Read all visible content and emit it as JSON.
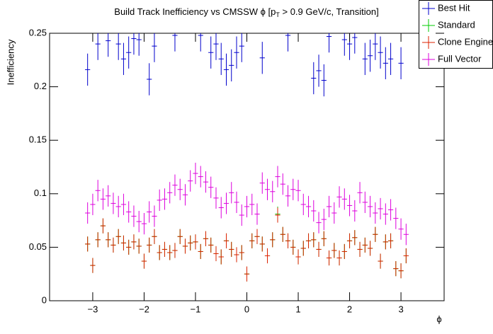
{
  "chart_data": {
    "type": "scatter",
    "title": "Build Track Inefficiency vs CMSSW ϕ [p",
    "title_sub": "T",
    "title_end": " > 0.9 GeV/c, Transition]",
    "xlabel": "ϕ",
    "ylabel": "Inefficiency",
    "xlim": [
      -3.84,
      3.84
    ],
    "ylim": [
      0,
      0.25
    ],
    "xticks": [
      {
        "value": -3,
        "label": "−3"
      },
      {
        "value": -2,
        "label": "−2"
      },
      {
        "value": -1,
        "label": "−1"
      },
      0,
      1,
      2,
      3
    ],
    "yticks": [
      0,
      0.05,
      0.1,
      0.15,
      0.2,
      0.25
    ],
    "legend": "top-right",
    "x": [
      -3.1,
      -3.0,
      -2.9,
      -2.8,
      -2.7,
      -2.6,
      -2.5,
      -2.4,
      -2.3,
      -2.2,
      -2.1,
      -2.0,
      -1.9,
      -1.8,
      -1.7,
      -1.6,
      -1.5,
      -1.4,
      -1.3,
      -1.2,
      -1.1,
      -1.0,
      -0.9,
      -0.8,
      -0.7,
      -0.6,
      -0.5,
      -0.4,
      -0.3,
      -0.2,
      -0.1,
      0.0,
      0.1,
      0.2,
      0.3,
      0.4,
      0.5,
      0.6,
      0.7,
      0.8,
      0.9,
      1.0,
      1.1,
      1.2,
      1.3,
      1.4,
      1.5,
      1.6,
      1.7,
      1.8,
      1.9,
      2.0,
      2.1,
      2.2,
      2.3,
      2.4,
      2.5,
      2.6,
      2.7,
      2.8,
      2.9,
      3.0,
      3.1
    ],
    "series": [
      {
        "name": "Best Hit",
        "color": "#0000cc",
        "error": 0.015,
        "values": [
          0.216,
          null,
          0.24,
          null,
          0.243,
          null,
          0.24,
          0.226,
          0.232,
          0.245,
          0.244,
          null,
          0.207,
          0.238,
          null,
          null,
          null,
          0.248,
          null,
          null,
          null,
          null,
          0.248,
          null,
          0.232,
          0.24,
          0.226,
          0.216,
          0.22,
          0.232,
          0.238,
          null,
          null,
          null,
          0.227,
          null,
          null,
          null,
          null,
          0.248,
          null,
          null,
          null,
          null,
          0.208,
          0.215,
          0.206,
          0.247,
          null,
          null,
          0.244,
          0.24,
          0.246,
          null,
          0.226,
          0.229,
          0.24,
          0.232,
          0.222,
          0.226,
          null,
          0.222,
          null
        ]
      },
      {
        "name": "Standard",
        "color": "#00cc00",
        "error": 0.007,
        "values": [
          0.053,
          0.033,
          0.057,
          0.07,
          0.057,
          0.052,
          0.06,
          0.054,
          0.05,
          0.055,
          0.051,
          0.037,
          0.052,
          0.06,
          0.045,
          0.048,
          0.045,
          0.047,
          0.06,
          0.051,
          0.054,
          0.055,
          0.046,
          0.058,
          0.052,
          0.044,
          0.041,
          0.056,
          0.048,
          0.043,
          0.045,
          0.025,
          0.056,
          0.06,
          0.053,
          0.042,
          0.057,
          0.081,
          0.062,
          0.056,
          0.05,
          0.041,
          0.049,
          0.056,
          0.057,
          0.048,
          0.058,
          0.04,
          0.047,
          0.04,
          0.046,
          0.056,
          0.059,
          0.048,
          0.052,
          0.049,
          0.062,
          0.037,
          0.055,
          0.056,
          0.03,
          0.028,
          0.042
        ]
      },
      {
        "name": "Clone Engine",
        "color": "#dd2200",
        "error": 0.007,
        "values": [
          0.053,
          0.033,
          0.057,
          0.07,
          0.057,
          0.052,
          0.06,
          0.054,
          0.05,
          0.055,
          0.051,
          0.037,
          0.052,
          0.06,
          0.045,
          0.048,
          0.045,
          0.047,
          0.06,
          0.051,
          0.054,
          0.055,
          0.046,
          0.058,
          0.052,
          0.044,
          0.041,
          0.056,
          0.048,
          0.043,
          0.045,
          0.025,
          0.056,
          0.06,
          0.053,
          0.042,
          0.057,
          0.08,
          0.062,
          0.056,
          0.05,
          0.041,
          0.049,
          0.056,
          0.057,
          0.048,
          0.058,
          0.04,
          0.047,
          0.04,
          0.046,
          0.056,
          0.059,
          0.048,
          0.052,
          0.049,
          0.062,
          0.037,
          0.055,
          0.056,
          0.03,
          0.028,
          0.042
        ]
      },
      {
        "name": "Full Vector",
        "color": "#dd00dd",
        "error": 0.01,
        "values": [
          0.082,
          0.09,
          0.103,
          0.095,
          0.098,
          0.091,
          0.088,
          0.09,
          0.083,
          0.079,
          0.074,
          0.072,
          0.083,
          0.079,
          0.094,
          0.095,
          0.101,
          0.108,
          0.104,
          0.099,
          0.112,
          0.119,
          0.116,
          0.111,
          0.106,
          0.096,
          0.087,
          0.091,
          0.101,
          0.092,
          0.08,
          0.088,
          0.09,
          0.081,
          0.11,
          0.104,
          0.102,
          0.116,
          0.109,
          0.098,
          0.104,
          0.103,
          0.09,
          0.088,
          0.084,
          0.073,
          0.076,
          0.088,
          0.082,
          0.097,
          0.095,
          0.089,
          0.084,
          0.101,
          0.092,
          0.088,
          0.082,
          0.086,
          0.081,
          0.085,
          0.077,
          0.067,
          0.062
        ]
      }
    ]
  }
}
